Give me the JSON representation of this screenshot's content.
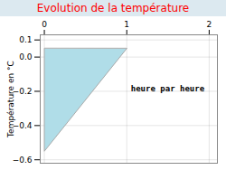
{
  "chart_data": {
    "type": "fill",
    "title": "Evolution de la température",
    "ylabel": "Température en °C",
    "x": [
      0,
      0,
      1
    ],
    "values": [
      0.05,
      -0.55,
      0.05
    ],
    "color": "#b0dde8",
    "xlim": [
      -0.05,
      2.1
    ],
    "ylim": [
      -0.62,
      0.13
    ],
    "xticks": [
      0,
      1,
      2
    ],
    "yticks": [
      -0.6,
      -0.4,
      -0.2,
      {
        "value": 0.0,
        "label": "0.0"
      },
      0.1
    ],
    "grid": true,
    "annotations": [
      {
        "text": "heure par heure",
        "x": 1.05,
        "y": -0.2
      }
    ]
  }
}
